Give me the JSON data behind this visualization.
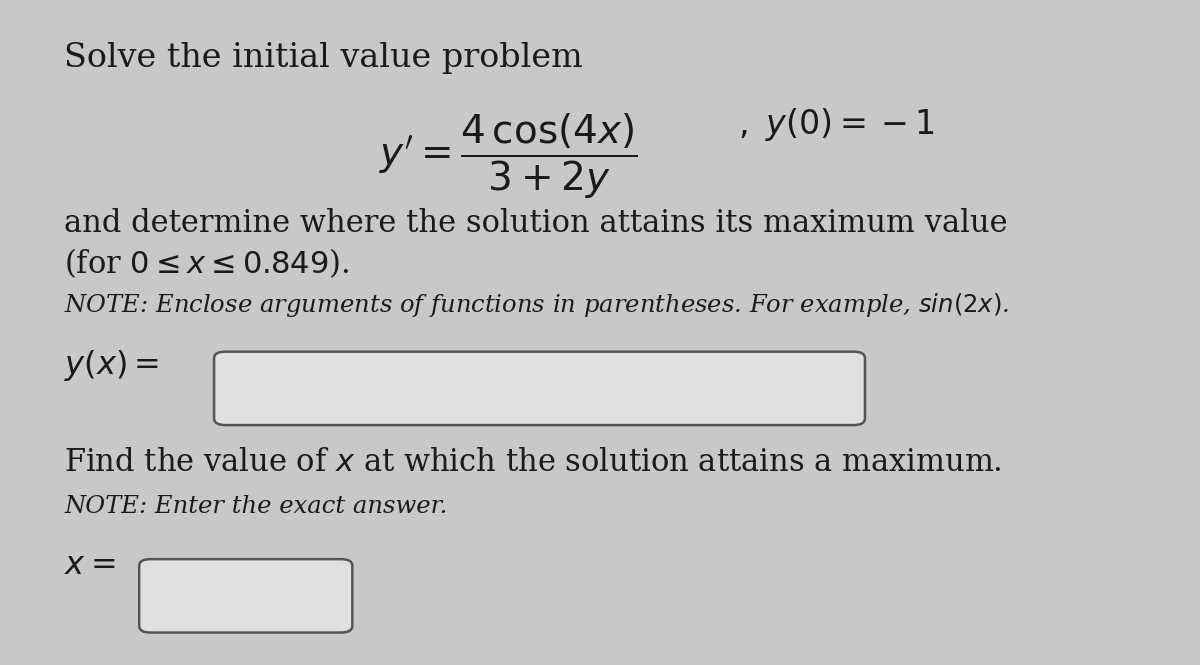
{
  "background_color": "#c8c8c8",
  "panel_color": "#e8e8e8",
  "text_color": "#1a1a1a",
  "box_face_color": "#e0e0e0",
  "box_edge_color": "#555555",
  "title_line": "Solve the initial value problem",
  "body_line1": "and determine where the solution attains its maximum value",
  "body_line2": "(for $0 \\leq x \\leq 0.849$).",
  "note_line1": "NOTE: Enclose arguments of functions in parentheses. For example, $sin(2x)$.",
  "label_yx": "$y(x) =$",
  "label_find": "Find the value of $x$ at which the solution attains a maximum.",
  "note_line2": "NOTE: Enter the exact answer.",
  "label_x": "$x =$"
}
